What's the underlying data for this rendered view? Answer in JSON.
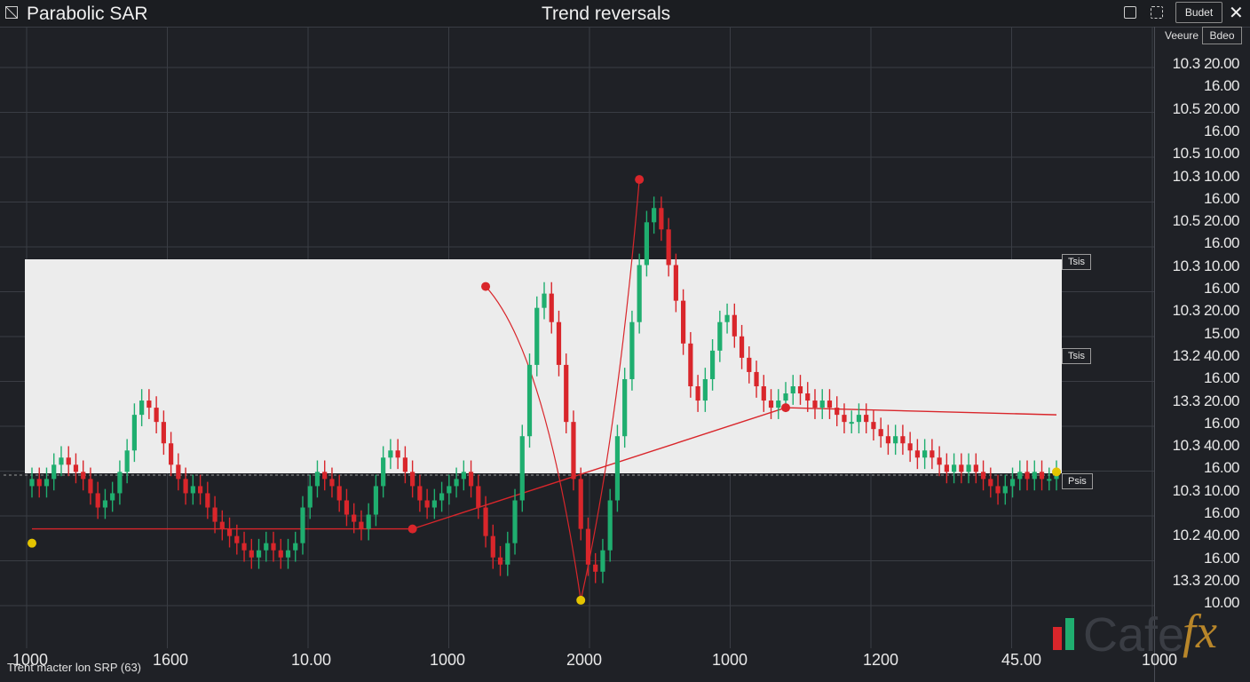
{
  "window": {
    "app_title": "Parabolic SAR",
    "chart_title": "Trend reversals",
    "header_button": "Budet",
    "icons": [
      "chart-icon",
      "lock-icon",
      "export-icon",
      "close-icon"
    ]
  },
  "price_axis": {
    "header_left": "Veeure",
    "header_right": "Bdeo",
    "labels": [
      "10.3 20.00",
      "16.00",
      "10.5 20.00",
      "16.00",
      "10.5 10.00",
      "10.3 10.00",
      "16.00",
      "10.5 20.00",
      "16.00",
      "10.3 10.00",
      "16.00",
      "10.3 20.00",
      "15.00",
      "13.2 40.00",
      "16.00",
      "13.3 20.00",
      "16.00",
      "10.3 40.00",
      "16.00",
      "10.3 10.00",
      "16.00",
      "10.2 40.00",
      "16.00",
      "13.3 20.00",
      "10.00"
    ]
  },
  "x_axis": {
    "labels": [
      "1000",
      "1600",
      "10.00",
      "1000",
      "2000",
      "1000",
      "1200",
      "45.00",
      "1000"
    ]
  },
  "range_tags": {
    "top": "Tsis",
    "middle": "Tsis",
    "bottom": "Psis"
  },
  "footer_note": "Trent macter lon SRP (63)",
  "logo": {
    "text": "Cafe",
    "suffix": "fx"
  },
  "colors": {
    "background": "#1f2126",
    "panel": "#ececec",
    "up": "#1fae6f",
    "down": "#d9262b",
    "sar_dot_up": "#e4c400",
    "sar_dot_down": "#d9262b",
    "trend_line": "#d9262b"
  },
  "chart_data": {
    "type": "candlestick",
    "closes": [
      44,
      43,
      44,
      46,
      47,
      46,
      45,
      44,
      42,
      40,
      41,
      42,
      45,
      48,
      53,
      55,
      54,
      52,
      49,
      46,
      44,
      42,
      43,
      42,
      40,
      38,
      37,
      36,
      35,
      34,
      33,
      34,
      35,
      34,
      33,
      34,
      35,
      40,
      43,
      45,
      44,
      43,
      41,
      39,
      38,
      37,
      39,
      43,
      47,
      48,
      47,
      45,
      43,
      41,
      40,
      41,
      42,
      43,
      44,
      45,
      43,
      40,
      36,
      33,
      32,
      35,
      41,
      50,
      60,
      68,
      70,
      66,
      60,
      52,
      44,
      37,
      32,
      31,
      34,
      41,
      50,
      58,
      66,
      74,
      80,
      82,
      79,
      74,
      69,
      63,
      57,
      55,
      58,
      62,
      66,
      67,
      64,
      61,
      59,
      57,
      55,
      54,
      55,
      56,
      57,
      56,
      55,
      54,
      55,
      54,
      53,
      52,
      52,
      53,
      52,
      51,
      50,
      49,
      50,
      49,
      48,
      47,
      48,
      47,
      46,
      45,
      46,
      45,
      46,
      45,
      44,
      43,
      42,
      43,
      44,
      45,
      44,
      45,
      44,
      44,
      45
    ],
    "sar_points": [
      {
        "index": 0,
        "value": 35,
        "side": "below"
      },
      {
        "index": 62,
        "value": 71,
        "side": "above"
      },
      {
        "index": 75,
        "value": 27,
        "side": "below"
      },
      {
        "index": 83,
        "value": 86,
        "side": "above"
      },
      {
        "index": 140,
        "value": 45,
        "side": "below"
      }
    ],
    "price_range": [
      24,
      90
    ]
  }
}
